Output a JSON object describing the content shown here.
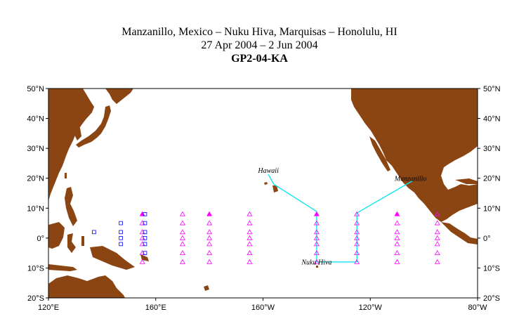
{
  "titles": {
    "route": "Manzanillo, Mexico – Nuku Hiva, Marquisas – Honolulu, HI",
    "dates": "27 Apr 2004 – 2 Jun 2004",
    "cruise": "GP2-04-KA"
  },
  "map": {
    "lon_range": [
      120,
      280
    ],
    "lat_range": [
      -20,
      50
    ],
    "land_color": "#8b4513",
    "track_color": "#00e5ee",
    "buoy_color": "#ff00ff",
    "square_color": "#0000ff",
    "lat_labels": [
      "50°N",
      "40°N",
      "30°N",
      "20°N",
      "10°N",
      "0°",
      "10°S",
      "20°S"
    ],
    "lat_values": [
      50,
      40,
      30,
      20,
      10,
      0,
      -10,
      -20
    ],
    "lon_labels": [
      "120°E",
      "160°E",
      "160°W",
      "120°W",
      "80°W"
    ],
    "lon_values": [
      120,
      160,
      200,
      240,
      280
    ]
  },
  "places": [
    {
      "name": "Hawaii",
      "lon": 202,
      "lat": 21.8
    },
    {
      "name": "Manzanillo",
      "lon": 255,
      "lat": 19.1
    },
    {
      "name": "Nuku Hiva",
      "lon": 220,
      "lat": -8.9
    }
  ],
  "track": [
    [
      255.7,
      19.1
    ],
    [
      235,
      8.4
    ],
    [
      235,
      -8.0
    ],
    [
      220,
      -8.0
    ],
    [
      220,
      8.9
    ],
    [
      204,
      18.0
    ],
    [
      202,
      21.3
    ]
  ],
  "buoy_columns": [
    {
      "lon": 155,
      "lats": [
        8,
        5,
        2,
        0,
        -2,
        -5,
        -8
      ],
      "filled": [
        0
      ]
    },
    {
      "lon": 170,
      "lats": [
        8,
        5,
        2,
        0,
        -2,
        -5,
        -8
      ],
      "filled": []
    },
    {
      "lon": 180,
      "lats": [
        8,
        5,
        2,
        0,
        -2,
        -5,
        -8
      ],
      "filled": [
        0
      ]
    },
    {
      "lon": 195,
      "lats": [
        8,
        5,
        2,
        0,
        -2,
        -5,
        -8
      ],
      "filled": []
    },
    {
      "lon": 220,
      "lats": [
        8,
        5,
        2,
        0,
        -2,
        -5,
        -8
      ],
      "filled": [
        0
      ]
    },
    {
      "lon": 235,
      "lats": [
        8,
        5,
        2,
        0,
        -2,
        -5,
        -8
      ],
      "filled": []
    },
    {
      "lon": 250,
      "lats": [
        8,
        5,
        2,
        0,
        -2,
        -5,
        -8
      ],
      "filled": [
        0
      ]
    },
    {
      "lon": 265,
      "lats": [
        8,
        5,
        2,
        0,
        -2,
        -5,
        -8
      ],
      "filled": []
    }
  ],
  "square_columns": [
    {
      "lon": 137,
      "lats": [
        2
      ]
    },
    {
      "lon": 147,
      "lats": [
        5,
        2,
        0,
        -2
      ]
    },
    {
      "lon": 156,
      "lats": [
        8,
        5,
        2,
        0,
        -2,
        -5
      ]
    }
  ]
}
